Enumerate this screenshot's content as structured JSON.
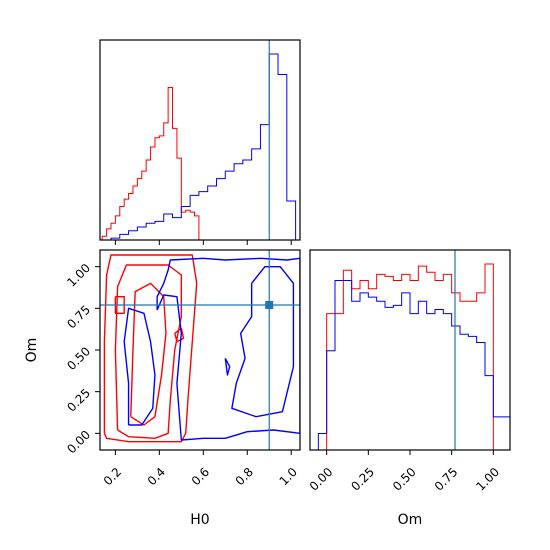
{
  "chart_data": {
    "type": "corner",
    "parameters": [
      "H0",
      "Om"
    ],
    "truth": {
      "H0": 0.9,
      "Om": 0.77
    },
    "colors": {
      "red_series": "#ff0000",
      "blue_series": "#0000ff",
      "truth_line": "#1f77b4",
      "frame": "#000000"
    },
    "panels": [
      {
        "id": "h0-histogram",
        "type": "step-histogram",
        "xlim": [
          0.13,
          1.04
        ],
        "x_ticks": [
          0.2,
          0.4,
          0.6,
          0.8,
          1.0
        ],
        "x_tick_labels_shown": false,
        "y_ticks_shown": false,
        "series": [
          {
            "color": "#ff0000",
            "bin_edges": [
              0.14,
              0.16,
              0.18,
              0.2,
              0.22,
              0.24,
              0.26,
              0.28,
              0.3,
              0.32,
              0.34,
              0.36,
              0.38,
              0.4,
              0.42,
              0.44,
              0.46,
              0.48,
              0.5,
              0.52,
              0.54,
              0.56,
              0.58,
              0.6
            ],
            "values": [
              0.02,
              0.06,
              0.09,
              0.13,
              0.18,
              0.22,
              0.25,
              0.29,
              0.33,
              0.37,
              0.43,
              0.5,
              0.55,
              0.56,
              0.63,
              0.82,
              0.6,
              0.44,
              0.15,
              0.16,
              0.15,
              0.13,
              0.0
            ]
          },
          {
            "color": "#0000ff",
            "bin_edges": [
              0.18,
              0.22,
              0.26,
              0.3,
              0.34,
              0.38,
              0.42,
              0.46,
              0.5,
              0.54,
              0.58,
              0.62,
              0.66,
              0.7,
              0.74,
              0.78,
              0.82,
              0.86,
              0.9,
              0.94,
              0.98,
              1.02
            ],
            "values": [
              0.01,
              0.03,
              0.05,
              0.07,
              0.09,
              0.1,
              0.14,
              0.12,
              0.18,
              0.24,
              0.26,
              0.29,
              0.33,
              0.37,
              0.41,
              0.43,
              0.49,
              0.62,
              1.0,
              0.89,
              0.21
            ]
          }
        ]
      },
      {
        "id": "joint-contour",
        "type": "contour",
        "xlim": [
          0.13,
          1.04
        ],
        "ylim": [
          -0.1,
          1.1
        ],
        "x_ticks": [
          0.2,
          0.4,
          0.6,
          0.8,
          1.0
        ],
        "x_tick_labels": [
          "0.2",
          "0.4",
          "0.6",
          "0.8",
          "1.0"
        ],
        "y_ticks": [
          0.0,
          0.25,
          0.5,
          0.75,
          1.0
        ],
        "y_tick_labels": [
          "0.00",
          "0.25",
          "0.50",
          "0.75",
          "1.00"
        ],
        "xlabel": "H0",
        "ylabel": "Om",
        "truth_marker": {
          "x": 0.9,
          "y": 0.77
        },
        "contours": [
          {
            "color": "#ff0000",
            "points": [
              [
                0.15,
                0.0
              ],
              [
                0.15,
                0.55
              ],
              [
                0.16,
                0.95
              ],
              [
                0.18,
                1.07
              ],
              [
                0.38,
                1.07
              ],
              [
                0.55,
                1.07
              ],
              [
                0.57,
                0.9
              ],
              [
                0.55,
                0.55
              ],
              [
                0.53,
                0.2
              ],
              [
                0.52,
                0.0
              ],
              [
                0.5,
                -0.05
              ],
              [
                0.26,
                -0.05
              ],
              [
                0.16,
                -0.03
              ],
              [
                0.15,
                0.0
              ]
            ]
          },
          {
            "color": "#ff0000",
            "points": [
              [
                0.21,
                0.02
              ],
              [
                0.2,
                0.5
              ],
              [
                0.21,
                0.88
              ],
              [
                0.25,
                1.01
              ],
              [
                0.44,
                1.01
              ],
              [
                0.5,
                0.95
              ],
              [
                0.5,
                0.7
              ],
              [
                0.47,
                0.5
              ],
              [
                0.45,
                0.2
              ],
              [
                0.44,
                0.0
              ],
              [
                0.38,
                -0.03
              ],
              [
                0.26,
                -0.02
              ],
              [
                0.21,
                0.02
              ]
            ]
          },
          {
            "color": "#ff0000",
            "points": [
              [
                0.27,
                0.1
              ],
              [
                0.28,
                0.5
              ],
              [
                0.29,
                0.85
              ],
              [
                0.36,
                0.9
              ],
              [
                0.42,
                0.82
              ],
              [
                0.43,
                0.6
              ],
              [
                0.41,
                0.35
              ],
              [
                0.38,
                0.1
              ],
              [
                0.33,
                0.05
              ],
              [
                0.27,
                0.1
              ]
            ]
          },
          {
            "color": "#ff0000",
            "points": [
              [
                0.2,
                0.82
              ],
              [
                0.24,
                0.82
              ],
              [
                0.24,
                0.72
              ],
              [
                0.2,
                0.72
              ],
              [
                0.2,
                0.82
              ]
            ]
          },
          {
            "color": "#ff0000",
            "points": [
              [
                0.47,
                0.6
              ],
              [
                0.5,
                0.63
              ],
              [
                0.51,
                0.57
              ],
              [
                0.48,
                0.55
              ],
              [
                0.47,
                0.6
              ]
            ]
          },
          {
            "color": "#0000ff",
            "points": [
              [
                0.39,
                0.74
              ],
              [
                0.39,
                0.82
              ],
              [
                0.42,
                0.9
              ],
              [
                0.44,
                0.98
              ],
              [
                0.45,
                1.04
              ],
              [
                0.6,
                1.05
              ],
              [
                0.7,
                1.04
              ],
              [
                0.86,
                1.05
              ],
              [
                0.98,
                1.04
              ],
              [
                1.04,
                1.05
              ],
              [
                1.04,
                0.0
              ],
              [
                0.92,
                0.02
              ],
              [
                0.8,
                0.01
              ],
              [
                0.7,
                -0.03
              ],
              [
                0.6,
                -0.03
              ],
              [
                0.5,
                -0.04
              ],
              [
                0.48,
                0.3
              ],
              [
                0.5,
                0.6
              ],
              [
                0.48,
                0.82
              ],
              [
                0.42,
                0.83
              ],
              [
                0.39,
                0.74
              ]
            ]
          },
          {
            "color": "#0000ff",
            "points": [
              [
                0.26,
                0.05
              ],
              [
                0.26,
                0.3
              ],
              [
                0.24,
                0.55
              ],
              [
                0.26,
                0.75
              ],
              [
                0.33,
                0.72
              ],
              [
                0.36,
                0.55
              ],
              [
                0.38,
                0.35
              ],
              [
                0.37,
                0.15
              ],
              [
                0.32,
                0.05
              ],
              [
                0.26,
                0.05
              ]
            ]
          },
          {
            "color": "#0000ff",
            "points": [
              [
                0.82,
                0.9
              ],
              [
                0.82,
                0.7
              ],
              [
                0.77,
                0.6
              ],
              [
                0.79,
                0.45
              ],
              [
                0.75,
                0.3
              ],
              [
                0.73,
                0.15
              ],
              [
                0.84,
                0.1
              ],
              [
                0.96,
                0.13
              ],
              [
                1.01,
                0.4
              ],
              [
                1.01,
                0.9
              ],
              [
                0.95,
                1.0
              ],
              [
                0.88,
                1.0
              ],
              [
                0.82,
                0.9
              ]
            ]
          },
          {
            "color": "#0000ff",
            "points": [
              [
                0.7,
                0.45
              ],
              [
                0.72,
                0.4
              ],
              [
                0.71,
                0.35
              ],
              [
                0.7,
                0.45
              ]
            ]
          }
        ]
      },
      {
        "id": "om-histogram",
        "type": "step-histogram",
        "xlim": [
          -0.1,
          1.1
        ],
        "x_ticks": [
          0.0,
          0.25,
          0.5,
          0.75,
          1.0
        ],
        "x_tick_labels": [
          "0.00",
          "0.25",
          "0.50",
          "0.75",
          "1.00"
        ],
        "y_ticks_shown": false,
        "xlabel": "Om",
        "series": [
          {
            "color": "#ff0000",
            "bin_edges": [
              0.0,
              0.05,
              0.1,
              0.15,
              0.2,
              0.25,
              0.3,
              0.35,
              0.4,
              0.45,
              0.5,
              0.55,
              0.6,
              0.65,
              0.7,
              0.75,
              0.8,
              0.85,
              0.9,
              0.95,
              1.0
            ],
            "values": [
              0.66,
              0.66,
              0.87,
              0.78,
              0.82,
              0.78,
              0.85,
              0.84,
              0.82,
              0.85,
              0.82,
              0.89,
              0.86,
              0.82,
              0.85,
              0.76,
              0.72,
              0.72,
              0.76,
              0.9
            ]
          },
          {
            "color": "#0000ff",
            "bin_edges": [
              -0.1,
              -0.05,
              0.0,
              0.05,
              0.1,
              0.15,
              0.2,
              0.25,
              0.3,
              0.35,
              0.4,
              0.45,
              0.5,
              0.55,
              0.6,
              0.65,
              0.7,
              0.75,
              0.8,
              0.85,
              0.9,
              0.95,
              1.0,
              1.05,
              1.1
            ],
            "values": [
              0.0,
              0.08,
              0.48,
              0.82,
              0.82,
              0.72,
              0.76,
              0.74,
              0.72,
              0.69,
              0.7,
              0.76,
              0.66,
              0.72,
              0.66,
              0.68,
              0.66,
              0.6,
              0.56,
              0.55,
              0.52,
              0.36,
              0.16,
              0.16
            ]
          }
        ]
      }
    ]
  }
}
